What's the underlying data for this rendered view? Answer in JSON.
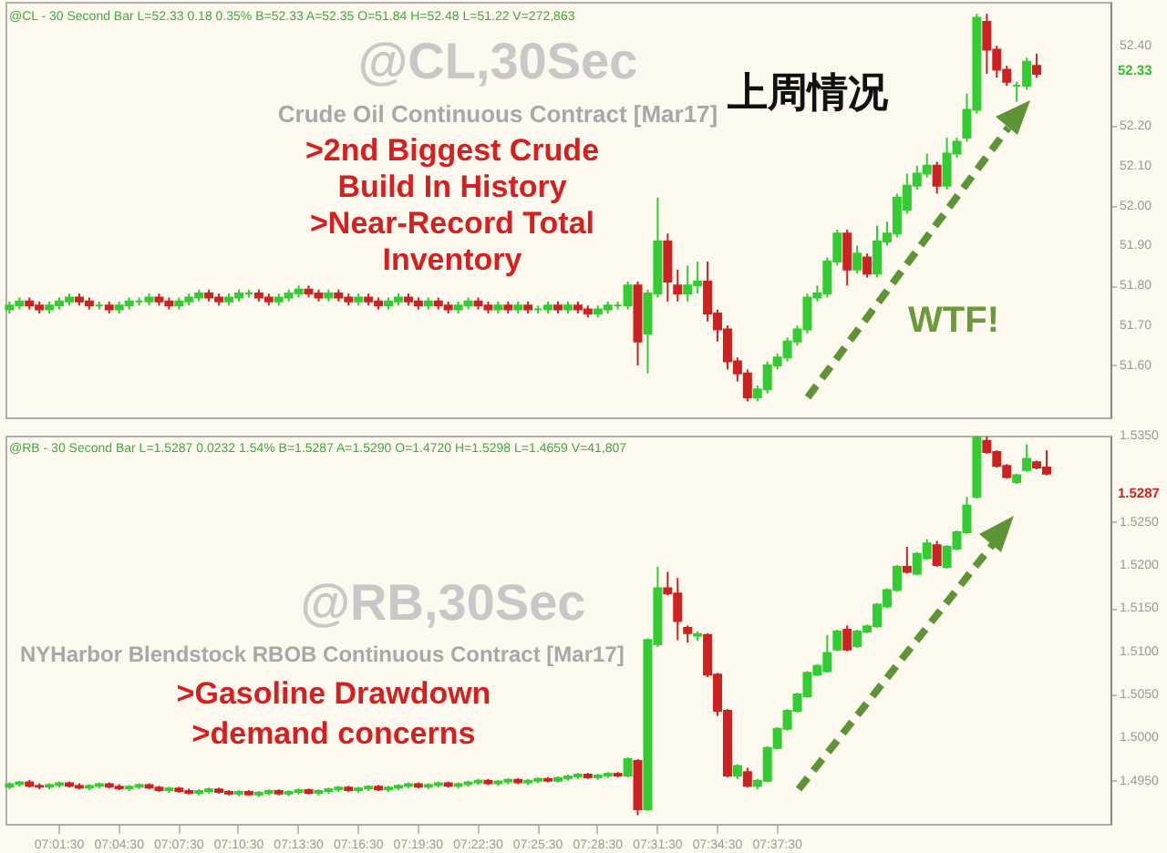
{
  "chart_data": [
    {
      "type": "candlestick",
      "title": "上周情况",
      "tick_labels": "y",
      "categories": [
        null,
        null,
        null,
        null,
        null,
        null,
        null,
        null,
        null,
        null,
        null,
        null,
        null,
        null,
        null,
        null,
        null,
        null,
        null,
        null,
        null,
        null,
        null,
        null,
        null,
        null,
        null,
        null,
        null,
        null,
        null,
        null,
        null,
        null,
        null,
        null,
        null,
        null,
        null,
        null,
        null,
        null,
        null,
        null,
        null,
        null,
        null,
        null,
        null,
        null,
        null,
        null,
        null,
        null,
        null,
        null,
        null,
        null,
        null,
        null,
        null,
        null,
        null,
        null,
        null,
        null,
        null,
        null,
        null,
        null,
        null,
        null,
        null,
        null,
        null,
        null,
        null,
        null,
        null,
        null,
        null,
        null,
        null,
        null,
        null,
        null,
        null,
        null,
        null,
        null,
        null,
        null,
        null,
        null,
        null,
        null,
        null,
        null,
        null,
        null,
        null,
        null,
        null,
        null,
        null,
        null,
        null,
        null,
        null,
        null,
        null
      ],
      "ylim": [
        51.47,
        52.51
      ],
      "yticks": [
        {
          "value": 51.6,
          "label": "51.60"
        },
        {
          "value": 51.7,
          "label": "51.70"
        },
        {
          "value": 51.8,
          "label": "51.80"
        },
        {
          "value": 51.9,
          "label": "51.90"
        },
        {
          "value": 52.0,
          "label": "52.00"
        },
        {
          "value": 52.1,
          "label": "52.10"
        },
        {
          "value": 52.2,
          "label": "52.20"
        },
        {
          "value": 52.4,
          "label": "52.40"
        }
      ],
      "annotations": [
        "@CL - 30 Second Bar  L=52.33  0.18  0.35%  B=52.33  A=52.35  O=51.84  H=52.48  L=51.22  V=272,863",
        "@CL,30Sec",
        "Crude Oil Continuous Contract [Mar17]",
        ">2nd Biggest Crude",
        "Build In History",
        ">Near-Record Total",
        "Inventory",
        "WTF!",
        "52.33"
      ],
      "ohlc": [
        [
          51.74,
          51.76,
          51.73,
          51.75
        ],
        [
          51.75,
          51.77,
          51.74,
          51.76
        ],
        [
          51.76,
          51.77,
          51.74,
          51.75
        ],
        [
          51.75,
          51.76,
          51.73,
          51.74
        ],
        [
          51.74,
          51.76,
          51.73,
          51.75
        ],
        [
          51.75,
          51.77,
          51.74,
          51.76
        ],
        [
          51.76,
          51.78,
          51.75,
          51.77
        ],
        [
          51.77,
          51.78,
          51.75,
          51.76
        ],
        [
          51.76,
          51.77,
          51.74,
          51.75
        ],
        [
          51.75,
          51.76,
          51.74,
          51.75
        ],
        [
          51.75,
          51.76,
          51.73,
          51.74
        ],
        [
          51.74,
          51.76,
          51.73,
          51.75
        ],
        [
          51.75,
          51.77,
          51.74,
          51.76
        ],
        [
          51.76,
          51.77,
          51.75,
          51.76
        ],
        [
          51.76,
          51.78,
          51.75,
          51.77
        ],
        [
          51.77,
          51.78,
          51.75,
          51.76
        ],
        [
          51.76,
          51.77,
          51.74,
          51.75
        ],
        [
          51.75,
          51.77,
          51.74,
          51.76
        ],
        [
          51.76,
          51.78,
          51.75,
          51.77
        ],
        [
          51.77,
          51.79,
          51.76,
          51.78
        ],
        [
          51.78,
          51.79,
          51.76,
          51.77
        ],
        [
          51.77,
          51.78,
          51.75,
          51.76
        ],
        [
          51.76,
          51.78,
          51.75,
          51.77
        ],
        [
          51.77,
          51.79,
          51.76,
          51.78
        ],
        [
          51.78,
          51.79,
          51.77,
          51.78
        ],
        [
          51.78,
          51.79,
          51.76,
          51.77
        ],
        [
          51.77,
          51.78,
          51.75,
          51.76
        ],
        [
          51.76,
          51.78,
          51.75,
          51.77
        ],
        [
          51.77,
          51.79,
          51.76,
          51.78
        ],
        [
          51.78,
          51.8,
          51.77,
          51.79
        ],
        [
          51.79,
          51.8,
          51.77,
          51.78
        ],
        [
          51.78,
          51.79,
          51.76,
          51.77
        ],
        [
          51.77,
          51.79,
          51.76,
          51.78
        ],
        [
          51.78,
          51.79,
          51.76,
          51.77
        ],
        [
          51.77,
          51.78,
          51.75,
          51.76
        ],
        [
          51.76,
          51.78,
          51.75,
          51.77
        ],
        [
          51.77,
          51.78,
          51.75,
          51.76
        ],
        [
          51.76,
          51.77,
          51.74,
          51.75
        ],
        [
          51.75,
          51.77,
          51.74,
          51.76
        ],
        [
          51.76,
          51.78,
          51.75,
          51.77
        ],
        [
          51.77,
          51.78,
          51.75,
          51.76
        ],
        [
          51.76,
          51.77,
          51.74,
          51.75
        ],
        [
          51.75,
          51.77,
          51.74,
          51.76
        ],
        [
          51.76,
          51.77,
          51.74,
          51.75
        ],
        [
          51.75,
          51.76,
          51.73,
          51.74
        ],
        [
          51.74,
          51.76,
          51.73,
          51.75
        ],
        [
          51.75,
          51.77,
          51.74,
          51.76
        ],
        [
          51.76,
          51.77,
          51.74,
          51.75
        ],
        [
          51.75,
          51.76,
          51.73,
          51.74
        ],
        [
          51.74,
          51.76,
          51.73,
          51.75
        ],
        [
          51.75,
          51.76,
          51.73,
          51.74
        ],
        [
          51.74,
          51.76,
          51.73,
          51.75
        ],
        [
          51.75,
          51.76,
          51.73,
          51.74
        ],
        [
          51.74,
          51.75,
          51.73,
          51.74
        ],
        [
          51.74,
          51.76,
          51.73,
          51.75
        ],
        [
          51.75,
          51.76,
          51.73,
          51.74
        ],
        [
          51.74,
          51.76,
          51.73,
          51.75
        ],
        [
          51.75,
          51.76,
          51.73,
          51.74
        ],
        [
          51.74,
          51.75,
          51.72,
          51.73
        ],
        [
          51.73,
          51.75,
          51.72,
          51.74
        ],
        [
          51.74,
          51.76,
          51.73,
          51.75
        ],
        [
          51.75,
          51.76,
          51.74,
          51.75
        ],
        [
          51.75,
          51.81,
          51.74,
          51.8
        ],
        [
          51.8,
          51.81,
          51.6,
          51.66
        ],
        [
          51.68,
          51.79,
          51.58,
          51.78
        ],
        [
          51.78,
          52.02,
          51.77,
          51.91
        ],
        [
          51.91,
          51.93,
          51.76,
          51.81
        ],
        [
          51.8,
          51.84,
          51.76,
          51.78
        ],
        [
          51.78,
          51.85,
          51.76,
          51.8
        ],
        [
          51.8,
          51.86,
          51.78,
          51.81
        ],
        [
          51.81,
          51.86,
          51.71,
          51.73
        ],
        [
          51.73,
          51.74,
          51.66,
          51.69
        ],
        [
          51.69,
          51.7,
          51.59,
          51.61
        ],
        [
          51.61,
          51.62,
          51.56,
          51.58
        ],
        [
          51.58,
          51.59,
          51.51,
          51.52
        ],
        [
          51.52,
          51.55,
          51.51,
          51.54
        ],
        [
          51.54,
          51.61,
          51.53,
          51.6
        ],
        [
          51.6,
          51.63,
          51.59,
          51.62
        ],
        [
          51.62,
          51.67,
          51.61,
          51.66
        ],
        [
          51.66,
          51.7,
          51.65,
          51.69
        ],
        [
          51.69,
          51.78,
          51.68,
          51.77
        ],
        [
          51.77,
          51.8,
          51.76,
          51.78
        ],
        [
          51.78,
          51.87,
          51.77,
          51.86
        ],
        [
          51.86,
          51.94,
          51.85,
          51.93
        ],
        [
          51.93,
          51.94,
          51.8,
          51.84
        ],
        [
          51.84,
          51.9,
          51.83,
          51.88
        ],
        [
          51.87,
          51.88,
          51.82,
          51.83
        ],
        [
          51.83,
          51.95,
          51.82,
          51.91
        ],
        [
          51.91,
          51.96,
          51.9,
          51.93
        ],
        [
          51.93,
          52.03,
          51.92,
          52.02
        ],
        [
          51.99,
          52.08,
          51.98,
          52.05
        ],
        [
          52.05,
          52.1,
          52.04,
          52.08
        ],
        [
          52.08,
          52.13,
          52.07,
          52.1
        ],
        [
          52.1,
          52.11,
          52.03,
          52.05
        ],
        [
          52.05,
          52.17,
          52.04,
          52.13
        ],
        [
          52.13,
          52.17,
          52.12,
          52.16
        ],
        [
          52.17,
          52.28,
          52.16,
          52.24
        ],
        [
          52.24,
          52.48,
          52.23,
          52.47
        ],
        [
          52.46,
          52.48,
          52.33,
          52.39
        ],
        [
          52.39,
          52.4,
          52.32,
          52.34
        ],
        [
          52.34,
          52.35,
          52.3,
          52.31
        ],
        [
          52.3,
          52.31,
          52.26,
          52.3
        ],
        [
          52.3,
          52.37,
          52.29,
          52.36
        ],
        [
          52.35,
          52.38,
          52.32,
          52.33
        ],
        null,
        null,
        null,
        null,
        null,
        null,
        null
      ]
    },
    {
      "type": "candlestick",
      "categories": [
        null,
        null,
        null,
        null,
        null,
        "07:01:30",
        null,
        null,
        null,
        null,
        null,
        "07:04:30",
        null,
        null,
        null,
        null,
        null,
        "07:07:30",
        null,
        null,
        null,
        null,
        null,
        "07:10:30",
        null,
        null,
        null,
        null,
        null,
        "07:13:30",
        null,
        null,
        null,
        null,
        null,
        "07:16:30",
        null,
        null,
        null,
        null,
        null,
        "07:19:30",
        null,
        null,
        null,
        null,
        null,
        "07:22:30",
        null,
        null,
        null,
        null,
        null,
        "07:25:30",
        null,
        null,
        null,
        null,
        null,
        "07:28:30",
        null,
        null,
        null,
        null,
        null,
        "07:31:30",
        null,
        null,
        null,
        null,
        null,
        "07:34:30",
        null,
        null,
        null,
        null,
        null,
        "07:37:30",
        null,
        null,
        null,
        null,
        null,
        null,
        null,
        null,
        null,
        null,
        null,
        null,
        null,
        null,
        null,
        null,
        null,
        null,
        null,
        null,
        null,
        null,
        null,
        null,
        null,
        null,
        null,
        null,
        null,
        null,
        null,
        null,
        null
      ],
      "ylim": [
        1.49,
        1.535
      ],
      "yticks": [
        {
          "value": 1.495,
          "label": "1.4950"
        },
        {
          "value": 1.5,
          "label": "1.5000"
        },
        {
          "value": 1.505,
          "label": "1.5050"
        },
        {
          "value": 1.51,
          "label": "1.5100"
        },
        {
          "value": 1.515,
          "label": "1.5150"
        },
        {
          "value": 1.52,
          "label": "1.5200"
        },
        {
          "value": 1.525,
          "label": "1.5250"
        },
        {
          "value": 1.535,
          "label": "1.5350"
        }
      ],
      "annotations": [
        "@RB - 30 Second Bar  L=1.5287  0.0232  1.54%  B=1.5287  A=1.5290  O=1.4720  H=1.5298  L=1.4659  V=41,807",
        "@RB,30Sec",
        "NYHarbor Blendstock RBOB Continuous Contract [Mar17]",
        ">Gasoline Drawdown",
        ">demand concerns",
        "1.5287"
      ],
      "ohlc": [
        [
          1.4943,
          1.4948,
          1.494,
          1.4946
        ],
        [
          1.4946,
          1.495,
          1.4943,
          1.4948
        ],
        [
          1.4948,
          1.4951,
          1.4942,
          1.4944
        ],
        [
          1.4944,
          1.4947,
          1.494,
          1.4943
        ],
        [
          1.4943,
          1.4947,
          1.494,
          1.4945
        ],
        [
          1.4945,
          1.4949,
          1.4942,
          1.4947
        ],
        [
          1.4947,
          1.4949,
          1.4942,
          1.4944
        ],
        [
          1.4944,
          1.4947,
          1.494,
          1.4942
        ],
        [
          1.4942,
          1.4946,
          1.4939,
          1.4944
        ],
        [
          1.4944,
          1.4948,
          1.4941,
          1.4946
        ],
        [
          1.4946,
          1.4948,
          1.4941,
          1.4943
        ],
        [
          1.4943,
          1.4946,
          1.4939,
          1.4941
        ],
        [
          1.4941,
          1.4945,
          1.4938,
          1.4943
        ],
        [
          1.4943,
          1.4947,
          1.494,
          1.4945
        ],
        [
          1.4945,
          1.4947,
          1.494,
          1.4942
        ],
        [
          1.4942,
          1.4944,
          1.4937,
          1.4939
        ],
        [
          1.4939,
          1.4943,
          1.4936,
          1.4941
        ],
        [
          1.4941,
          1.4943,
          1.4936,
          1.4938
        ],
        [
          1.4938,
          1.4941,
          1.4934,
          1.4936
        ],
        [
          1.4936,
          1.494,
          1.4933,
          1.4938
        ],
        [
          1.4938,
          1.4942,
          1.4935,
          1.494
        ],
        [
          1.494,
          1.4942,
          1.4935,
          1.4937
        ],
        [
          1.4937,
          1.4939,
          1.4933,
          1.4935
        ],
        [
          1.4935,
          1.4939,
          1.4932,
          1.4937
        ],
        [
          1.4937,
          1.4939,
          1.4933,
          1.4934
        ],
        [
          1.4934,
          1.4938,
          1.4931,
          1.4936
        ],
        [
          1.4936,
          1.494,
          1.4933,
          1.4938
        ],
        [
          1.4938,
          1.494,
          1.4933,
          1.4935
        ],
        [
          1.4935,
          1.4939,
          1.4932,
          1.4937
        ],
        [
          1.4937,
          1.4941,
          1.4934,
          1.4939
        ],
        [
          1.4939,
          1.4941,
          1.4934,
          1.4936
        ],
        [
          1.4936,
          1.494,
          1.4933,
          1.4938
        ],
        [
          1.4938,
          1.4942,
          1.4935,
          1.494
        ],
        [
          1.494,
          1.4944,
          1.4937,
          1.4942
        ],
        [
          1.4942,
          1.4944,
          1.4937,
          1.4939
        ],
        [
          1.4939,
          1.4943,
          1.4936,
          1.4941
        ],
        [
          1.4941,
          1.4945,
          1.4938,
          1.4943
        ],
        [
          1.4943,
          1.4945,
          1.4938,
          1.494
        ],
        [
          1.494,
          1.4944,
          1.4937,
          1.4942
        ],
        [
          1.4942,
          1.4946,
          1.4939,
          1.4944
        ],
        [
          1.4944,
          1.4948,
          1.4941,
          1.4946
        ],
        [
          1.4946,
          1.4948,
          1.4941,
          1.4943
        ],
        [
          1.4943,
          1.4947,
          1.494,
          1.4945
        ],
        [
          1.4945,
          1.4949,
          1.4942,
          1.4947
        ],
        [
          1.4947,
          1.4949,
          1.4942,
          1.4944
        ],
        [
          1.4944,
          1.4948,
          1.4941,
          1.4946
        ],
        [
          1.4946,
          1.495,
          1.4943,
          1.4948
        ],
        [
          1.4948,
          1.4952,
          1.4945,
          1.495
        ],
        [
          1.495,
          1.4952,
          1.4945,
          1.4947
        ],
        [
          1.4947,
          1.4951,
          1.4944,
          1.4949
        ],
        [
          1.4949,
          1.4953,
          1.4946,
          1.4951
        ],
        [
          1.4951,
          1.4953,
          1.4946,
          1.4948
        ],
        [
          1.4948,
          1.4952,
          1.4945,
          1.495
        ],
        [
          1.495,
          1.4954,
          1.4947,
          1.4952
        ],
        [
          1.4952,
          1.4954,
          1.4948,
          1.495
        ],
        [
          1.495,
          1.4955,
          1.4948,
          1.4953
        ],
        [
          1.4953,
          1.4957,
          1.495,
          1.4955
        ],
        [
          1.4955,
          1.4959,
          1.4952,
          1.4957
        ],
        [
          1.4957,
          1.4959,
          1.4952,
          1.4954
        ],
        [
          1.4954,
          1.4958,
          1.4951,
          1.4956
        ],
        [
          1.4956,
          1.496,
          1.4953,
          1.4958
        ],
        [
          1.4958,
          1.496,
          1.4954,
          1.4956
        ],
        [
          1.4956,
          1.4977,
          1.4954,
          1.4975
        ],
        [
          1.4973,
          1.4975,
          1.491,
          1.4917
        ],
        [
          1.4917,
          1.5115,
          1.4915,
          1.5113
        ],
        [
          1.5108,
          1.5198,
          1.5105,
          1.5173
        ],
        [
          1.5173,
          1.5192,
          1.5165,
          1.5167
        ],
        [
          1.5167,
          1.5185,
          1.5113,
          1.5135
        ],
        [
          1.5127,
          1.513,
          1.511,
          1.5121
        ],
        [
          1.5118,
          1.5123,
          1.5112,
          1.512
        ],
        [
          1.5119,
          1.5121,
          1.507,
          1.5073
        ],
        [
          1.5073,
          1.5075,
          1.5025,
          1.5031
        ],
        [
          1.5031,
          1.5033,
          1.4954,
          1.4956
        ],
        [
          1.4956,
          1.4969,
          1.4952,
          1.4967
        ],
        [
          1.496,
          1.4965,
          1.4942,
          1.4944
        ],
        [
          1.4944,
          1.4952,
          1.494,
          1.495
        ],
        [
          1.495,
          1.499,
          1.4948,
          1.4988
        ],
        [
          1.4988,
          1.5012,
          1.4986,
          1.501
        ],
        [
          1.501,
          1.5033,
          1.5008,
          1.5031
        ],
        [
          1.5031,
          1.5052,
          1.5029,
          1.505
        ],
        [
          1.5048,
          1.5077,
          1.5046,
          1.5075
        ],
        [
          1.5073,
          1.5085,
          1.5071,
          1.5083
        ],
        [
          1.5077,
          1.5119,
          1.5075,
          1.5098
        ],
        [
          1.5102,
          1.5125,
          1.51,
          1.5123
        ],
        [
          1.5125,
          1.513,
          1.51,
          1.5102
        ],
        [
          1.5106,
          1.5125,
          1.5104,
          1.5123
        ],
        [
          1.5123,
          1.5131,
          1.5121,
          1.5129
        ],
        [
          1.5129,
          1.5156,
          1.5127,
          1.5154
        ],
        [
          1.5152,
          1.5173,
          1.515,
          1.5171
        ],
        [
          1.5171,
          1.52,
          1.5169,
          1.5198
        ],
        [
          1.5198,
          1.5221,
          1.519,
          1.5192
        ],
        [
          1.519,
          1.5215,
          1.5188,
          1.5213
        ],
        [
          1.5208,
          1.523,
          1.5206,
          1.5225
        ],
        [
          1.5223,
          1.5228,
          1.5198,
          1.52
        ],
        [
          1.5198,
          1.5223,
          1.5196,
          1.5221
        ],
        [
          1.5219,
          1.524,
          1.5217,
          1.5238
        ],
        [
          1.5238,
          1.5279,
          1.5236,
          1.5269
        ],
        [
          1.5279,
          1.535,
          1.5277,
          1.5348
        ],
        [
          1.5344,
          1.5349,
          1.5329,
          1.5331
        ],
        [
          1.5331,
          1.5333,
          1.5313,
          1.5315
        ],
        [
          1.5315,
          1.5317,
          1.53,
          1.5302
        ],
        [
          1.5296,
          1.5306,
          1.5294,
          1.5304
        ],
        [
          1.531,
          1.534,
          1.5308,
          1.5323
        ],
        [
          1.5319,
          1.5321,
          1.5311,
          1.5313
        ],
        [
          1.5313,
          1.5333,
          1.5304,
          1.5306
        ],
        null,
        null,
        null,
        null,
        null,
        null
      ]
    }
  ]
}
